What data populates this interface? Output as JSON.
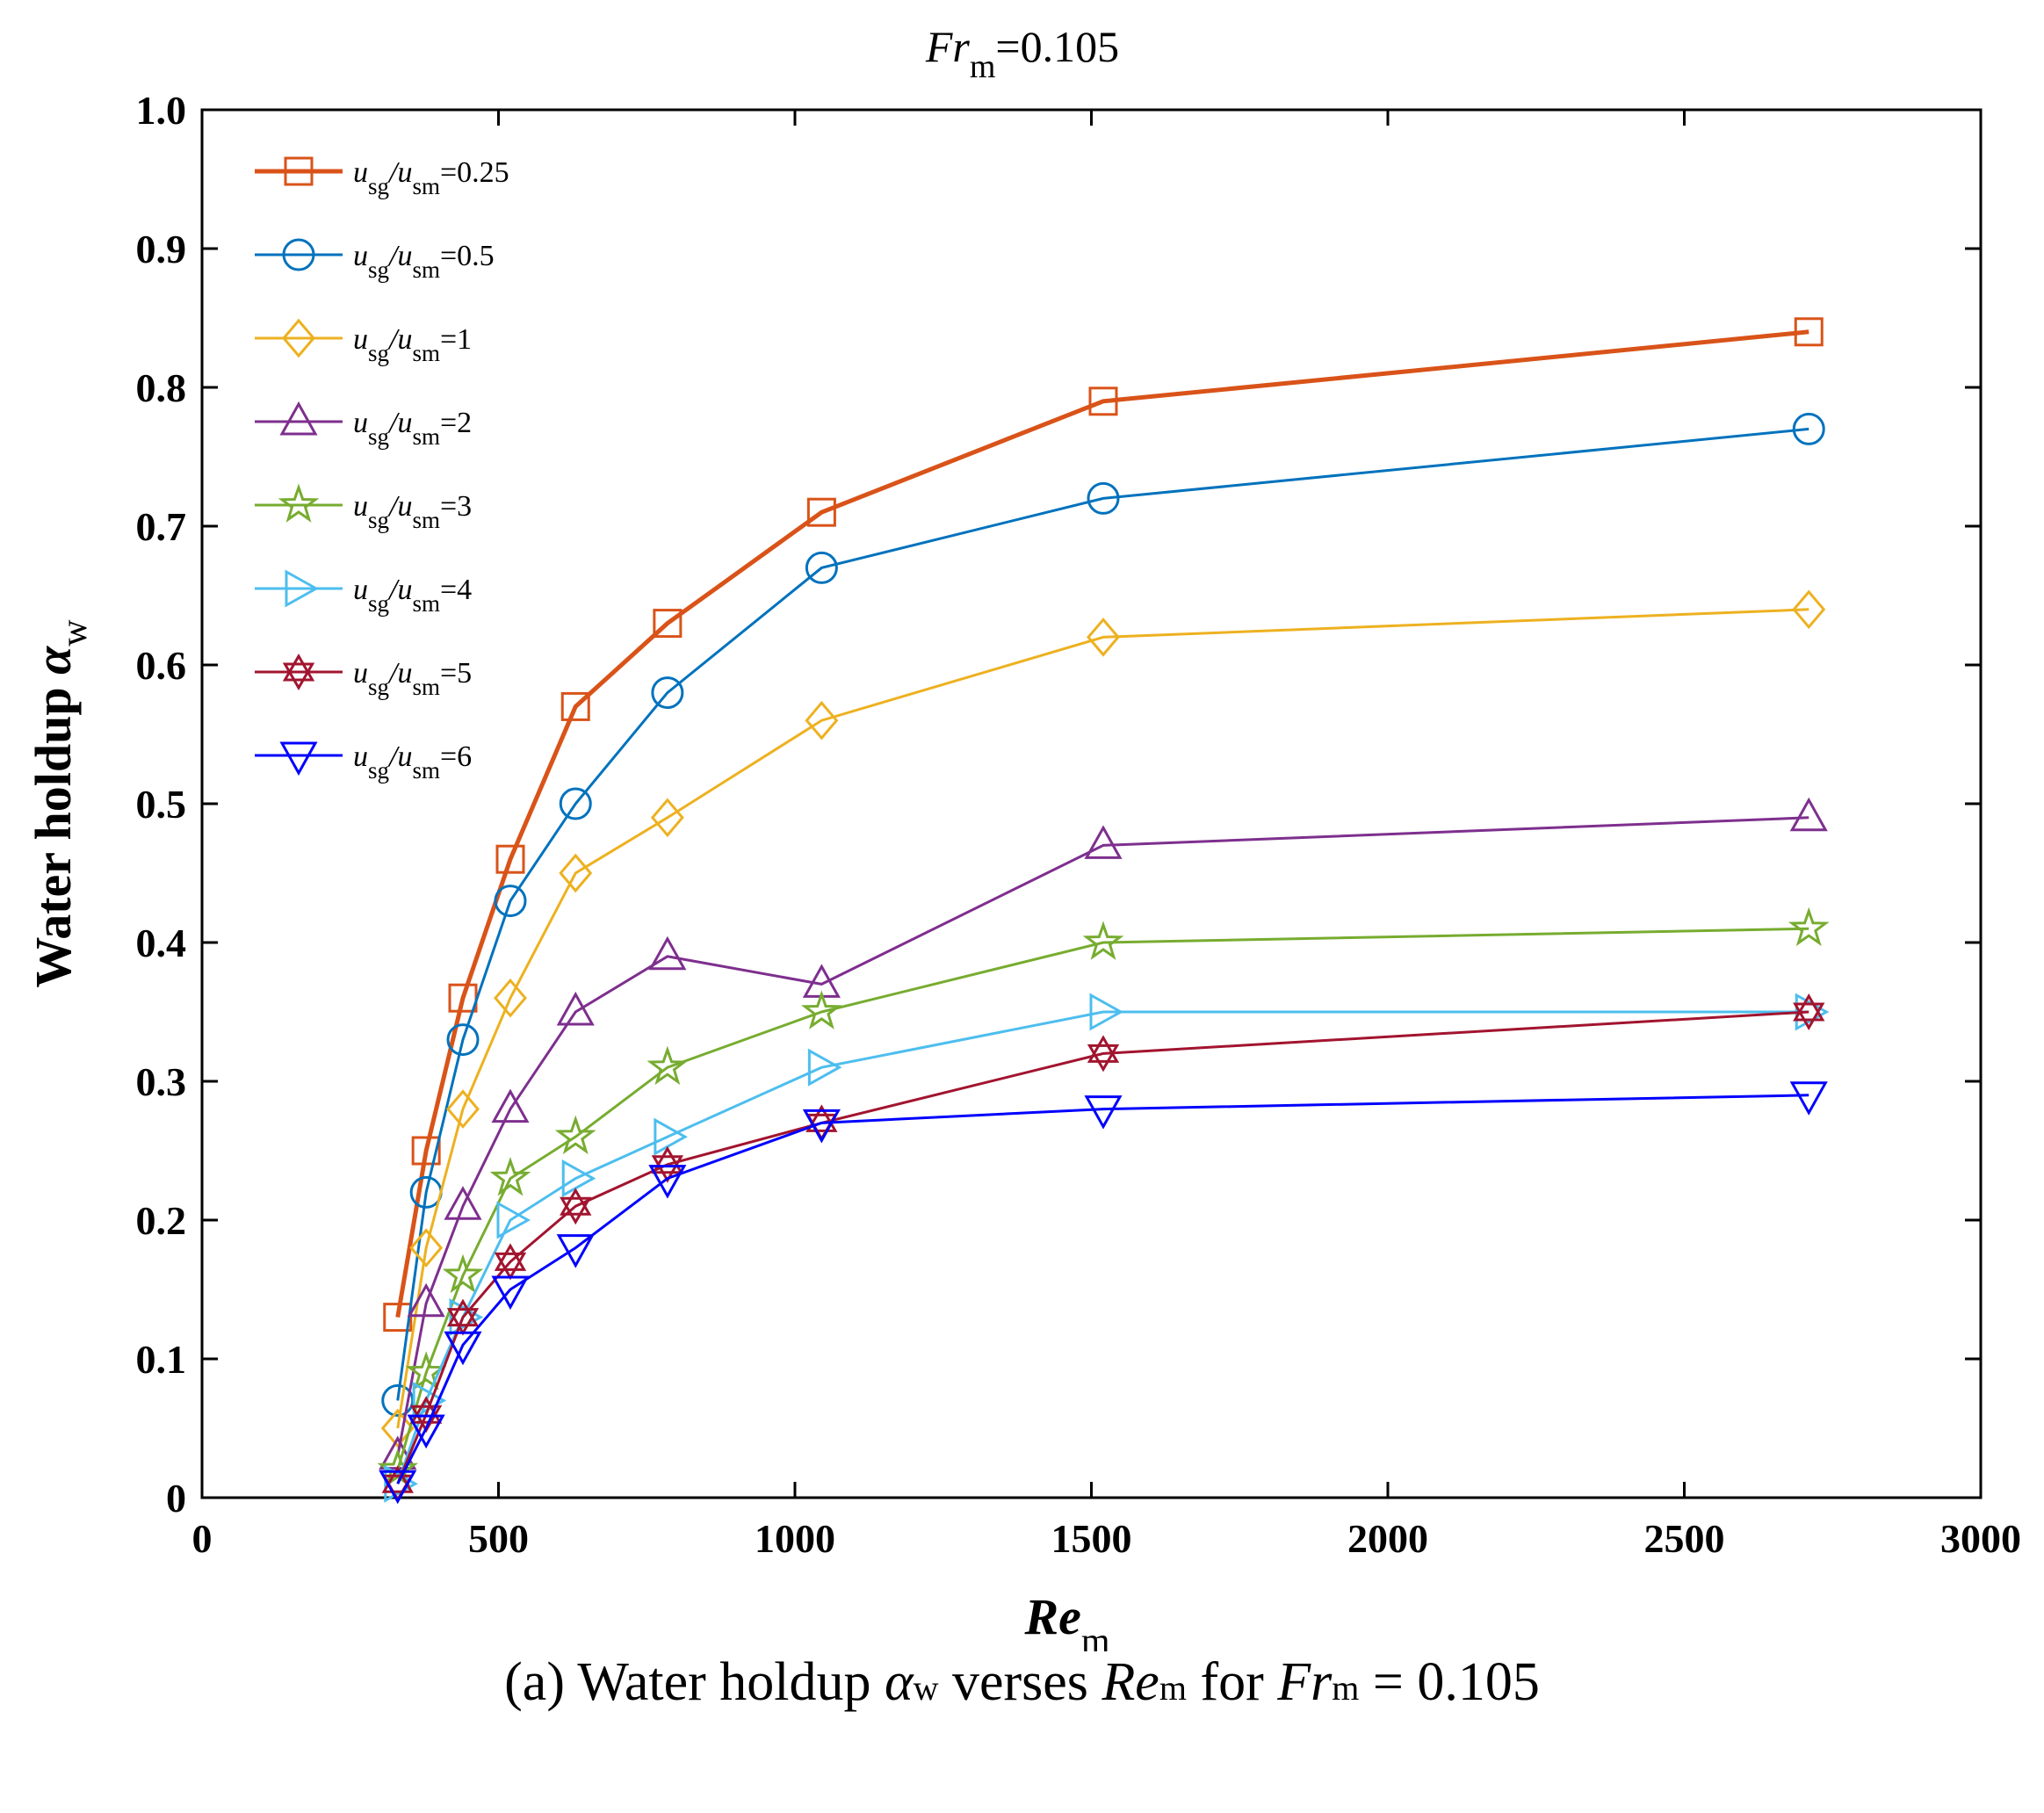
{
  "chart_data": {
    "type": "line",
    "title": {
      "main": "Fr",
      "sub": "m",
      "value": "=0.105"
    },
    "xlabel": {
      "main": "Re",
      "sub": "m"
    },
    "ylabel": {
      "main": "Water holdup ",
      "symbol": "α",
      "sub": "w"
    },
    "xlim": [
      0,
      3000
    ],
    "ylim": [
      0,
      1.0
    ],
    "xticks": [
      0,
      500,
      1000,
      1500,
      2000,
      2500,
      3000
    ],
    "xtick_labels": [
      "0",
      "500",
      "1000",
      "1500",
      "2000",
      "2500",
      "3000"
    ],
    "yticks": [
      0,
      0.1,
      0.2,
      0.3,
      0.4,
      0.5,
      0.6,
      0.7,
      0.8,
      0.9,
      1.0
    ],
    "ytick_labels": [
      "0",
      "0.1",
      "0.2",
      "0.3",
      "0.4",
      "0.5",
      "0.6",
      "0.7",
      "0.8",
      "0.9",
      "1.0"
    ],
    "grid": false,
    "legend_position": "top-left",
    "x": [
      330,
      378,
      440,
      520,
      630,
      785,
      1045,
      1520,
      2710
    ],
    "series": [
      {
        "name": "usg/usm=0.25",
        "lead": "u",
        "sub1": "sg",
        "mid": "/u",
        "sub2": "sm",
        "value": "=0.25",
        "color": "#D95319",
        "marker": "square",
        "thick": true,
        "values": [
          0.13,
          0.25,
          0.36,
          0.46,
          0.57,
          0.63,
          0.71,
          0.79,
          0.84
        ]
      },
      {
        "name": "usg/usm=0.5",
        "lead": "u",
        "sub1": "sg",
        "mid": "/u",
        "sub2": "sm",
        "value": "=0.5",
        "color": "#0072BD",
        "marker": "circle",
        "values": [
          0.07,
          0.22,
          0.33,
          0.43,
          0.5,
          0.58,
          0.67,
          0.72,
          0.77
        ]
      },
      {
        "name": "usg/usm=1",
        "lead": "u",
        "sub1": "sg",
        "mid": "/u",
        "sub2": "sm",
        "value": "=1",
        "color": "#EDB120",
        "marker": "diamond",
        "values": [
          0.05,
          0.18,
          0.28,
          0.36,
          0.45,
          0.49,
          0.56,
          0.62,
          0.64
        ]
      },
      {
        "name": "usg/usm=2",
        "lead": "u",
        "sub1": "sg",
        "mid": "/u",
        "sub2": "sm",
        "value": "=2",
        "color": "#7E2F8E",
        "marker": "triangle-up",
        "values": [
          0.03,
          0.14,
          0.21,
          0.28,
          0.35,
          0.39,
          0.37,
          0.47,
          0.49
        ]
      },
      {
        "name": "usg/usm=3",
        "lead": "u",
        "sub1": "sg",
        "mid": "/u",
        "sub2": "sm",
        "value": "=3",
        "color": "#77AC30",
        "marker": "star",
        "values": [
          0.02,
          0.09,
          0.16,
          0.23,
          0.26,
          0.31,
          0.35,
          0.4,
          0.41
        ]
      },
      {
        "name": "usg/usm=4",
        "lead": "u",
        "sub1": "sg",
        "mid": "/u",
        "sub2": "sm",
        "value": "=4",
        "color": "#4DBEEE",
        "marker": "triangle-right",
        "values": [
          0.01,
          0.07,
          0.13,
          0.2,
          0.23,
          0.26,
          0.31,
          0.35,
          0.35
        ]
      },
      {
        "name": "usg/usm=5",
        "lead": "u",
        "sub1": "sg",
        "mid": "/u",
        "sub2": "sm",
        "value": "=5",
        "color": "#A2142F",
        "marker": "hexagram",
        "values": [
          0.01,
          0.06,
          0.13,
          0.17,
          0.21,
          0.24,
          0.27,
          0.32,
          0.35
        ]
      },
      {
        "name": "usg/usm=6",
        "lead": "u",
        "sub1": "sg",
        "mid": "/u",
        "sub2": "sm",
        "value": "=6",
        "color": "#0000FF",
        "marker": "triangle-down",
        "values": [
          0.01,
          0.05,
          0.11,
          0.15,
          0.18,
          0.23,
          0.27,
          0.28,
          0.29
        ]
      }
    ]
  },
  "caption": {
    "label": "(a)",
    "text1": " Water holdup ",
    "alpha": "α",
    "alpha_sub": "w",
    "text2": " verses ",
    "re": "Re",
    "re_sub": "m",
    "text3": " for ",
    "fr": "Fr",
    "fr_sub": "m",
    "text4": " = 0.105"
  }
}
